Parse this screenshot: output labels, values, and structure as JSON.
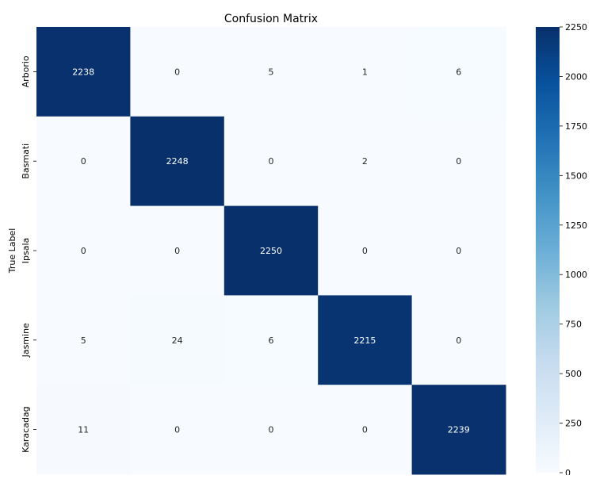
{
  "chart_data": {
    "type": "heatmap",
    "title": "Confusion Matrix",
    "ylabel": "True Label",
    "xlabel": "",
    "row_labels": [
      "Arborio",
      "Basmati",
      "Ipsala",
      "Jasmine",
      "Karacadag"
    ],
    "values": [
      [
        2238,
        0,
        5,
        1,
        6
      ],
      [
        0,
        2248,
        0,
        2,
        0
      ],
      [
        0,
        0,
        2250,
        0,
        0
      ],
      [
        5,
        24,
        6,
        2215,
        0
      ],
      [
        11,
        0,
        0,
        0,
        2239
      ]
    ],
    "vmin": 0,
    "vmax": 2250,
    "colormap": "Blues",
    "colorbar_ticks": [
      0,
      250,
      500,
      750,
      1000,
      1250,
      1500,
      1750,
      2000,
      2250
    ],
    "cell_text_dark": "#262626",
    "cell_text_light": "#ffffff",
    "colormap_stops": [
      "#f7fbff",
      "#deebf7",
      "#c6dbef",
      "#9ecae1",
      "#6baed6",
      "#4292c6",
      "#2171b5",
      "#08519c",
      "#08306b"
    ]
  }
}
